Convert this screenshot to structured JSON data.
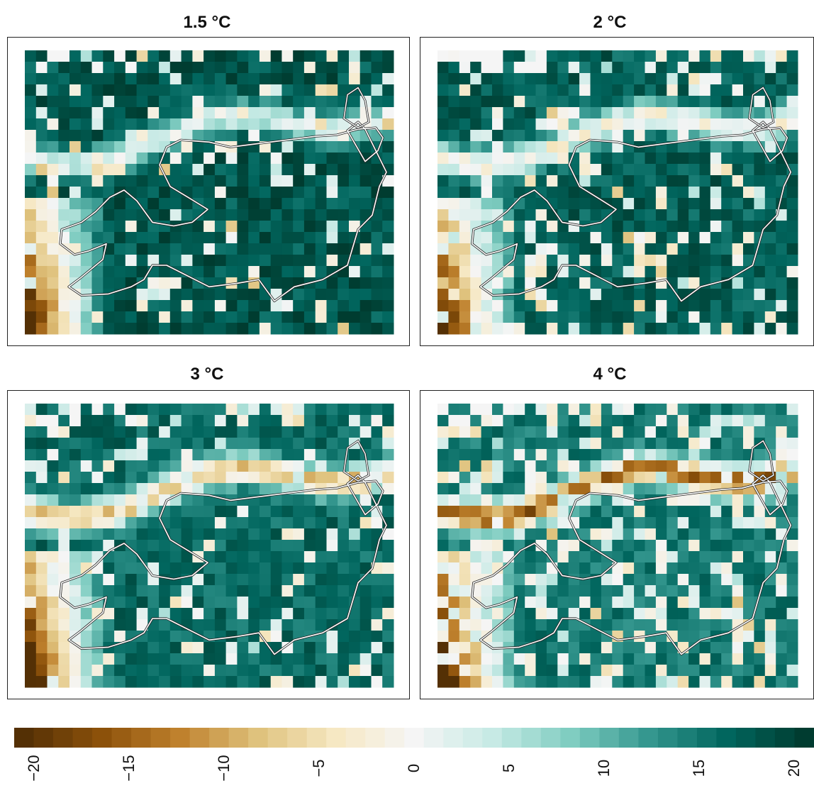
{
  "panels": [
    {
      "title": "1.5 °C",
      "id": "p15"
    },
    {
      "title": "2 °C",
      "id": "p2"
    },
    {
      "title": "3 °C",
      "id": "p3"
    },
    {
      "title": "4 °C",
      "id": "p4"
    }
  ],
  "colorbar": {
    "ticks": [
      "−20",
      "−15",
      "−10",
      "−5",
      "0",
      "5",
      "10",
      "15",
      "20"
    ],
    "palette": [
      "#543005",
      "#8c510a",
      "#bf812d",
      "#dfc27d",
      "#f6e8c3",
      "#f5f5f5",
      "#c7eae5",
      "#80cdc1",
      "#35978f",
      "#01665e",
      "#003c30"
    ]
  },
  "colors": {
    "outline": "#222222",
    "basin_line": "#ffffff"
  }
}
